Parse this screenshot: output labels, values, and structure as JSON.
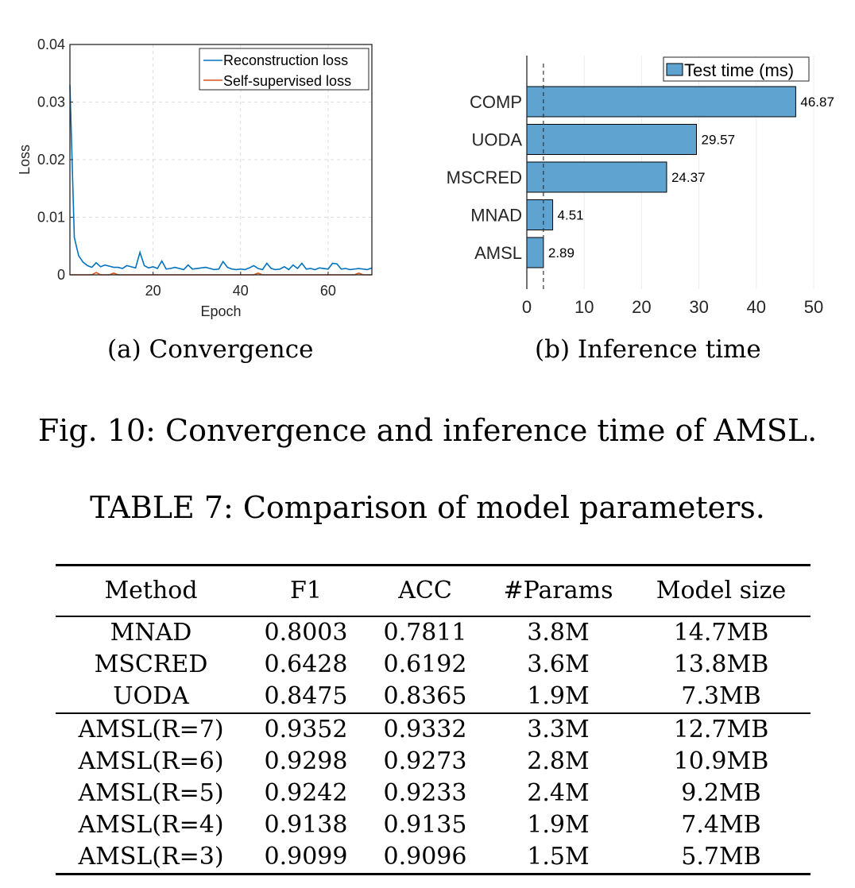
{
  "chart_data": [
    {
      "type": "line",
      "xlabel": "Epoch",
      "ylabel": "Loss",
      "xlim": [
        1,
        70
      ],
      "ylim": [
        0,
        0.04
      ],
      "xticks": [
        20,
        40,
        60
      ],
      "yticks": [
        0,
        0.01,
        0.02,
        0.03,
        0.04
      ],
      "ytick_labels": [
        "0",
        "0.01",
        "0.02",
        "0.03",
        "0.04"
      ],
      "grid": true,
      "legend": "top-right",
      "x": [
        1,
        2,
        3,
        4,
        5,
        6,
        7,
        8,
        9,
        10,
        11,
        12,
        13,
        14,
        15,
        16,
        17,
        18,
        19,
        20,
        21,
        22,
        23,
        24,
        25,
        26,
        27,
        28,
        29,
        30,
        31,
        32,
        33,
        34,
        35,
        36,
        37,
        38,
        39,
        40,
        41,
        42,
        43,
        44,
        45,
        46,
        47,
        48,
        49,
        50,
        51,
        52,
        53,
        54,
        55,
        56,
        57,
        58,
        59,
        60,
        61,
        62,
        63,
        64,
        65,
        66,
        67,
        68,
        69,
        70
      ],
      "series": [
        {
          "name": "Reconstruction loss",
          "color": "#0072BD",
          "values": [
            0.033,
            0.0065,
            0.0033,
            0.0022,
            0.0016,
            0.0013,
            0.0021,
            0.0014,
            0.0017,
            0.0015,
            0.0013,
            0.0013,
            0.0011,
            0.0016,
            0.0014,
            0.0012,
            0.0039,
            0.0016,
            0.0012,
            0.0014,
            0.0011,
            0.0024,
            0.001,
            0.0011,
            0.0013,
            0.0011,
            0.0009,
            0.0017,
            0.001,
            0.0011,
            0.0012,
            0.0013,
            0.0011,
            0.0009,
            0.001,
            0.0023,
            0.0013,
            0.001,
            0.0009,
            0.001,
            0.0009,
            0.0012,
            0.0016,
            0.0011,
            0.0009,
            0.002,
            0.0011,
            0.0009,
            0.001,
            0.0014,
            0.0009,
            0.0017,
            0.0011,
            0.002,
            0.001,
            0.0011,
            0.0009,
            0.0012,
            0.0011,
            0.001,
            0.002,
            0.0019,
            0.001,
            0.0011,
            0.0009,
            0.001,
            0.0011,
            0.001,
            0.0009,
            0.0012
          ]
        },
        {
          "name": "Self-supervised loss",
          "color": "#D95319",
          "values": [
            0.0,
            0.0,
            0.0,
            0.0,
            0.0,
            0.0,
            0.0004,
            0.0,
            0.0,
            0.0,
            0.0003,
            0.0,
            0.0,
            0.0,
            0.0,
            0.0,
            0.0,
            0.0,
            0.0,
            0.0,
            0.0,
            0.0,
            0.0,
            0.0,
            0.0,
            0.0,
            0.0,
            0.0,
            0.0,
            0.0,
            0.0,
            0.0,
            0.0,
            0.0,
            0.0,
            0.0,
            0.0,
            0.0,
            0.0,
            0.0,
            0.0,
            0.0,
            0.0,
            0.0003,
            0.0,
            0.0,
            0.0,
            0.0,
            0.0,
            0.0,
            0.0,
            0.0,
            0.0,
            0.0,
            0.0,
            0.0,
            0.0,
            0.0,
            0.0,
            0.0,
            0.0,
            0.0,
            0.0,
            0.0,
            0.0,
            0.0,
            0.0003,
            0.0,
            0.0,
            0.0
          ]
        }
      ]
    },
    {
      "type": "bar",
      "orientation": "horizontal",
      "categories": [
        "COMP",
        "UODA",
        "MSCRED",
        "MNAD",
        "AMSL"
      ],
      "series": [
        {
          "name": "Test time (ms)",
          "color": "#5FA3D0",
          "values": [
            46.87,
            29.57,
            24.37,
            4.51,
            2.89
          ]
        }
      ],
      "value_labels": [
        "46.87",
        "29.57",
        "24.37",
        "4.51",
        "2.89"
      ],
      "xlim": [
        0,
        50
      ],
      "xticks": [
        0,
        10,
        20,
        30,
        40,
        50
      ],
      "reference_line_x": 2.89,
      "grid": true,
      "legend": "top-right"
    }
  ],
  "captions": {
    "sub_a": "(a) Convergence",
    "sub_b": "(b) Inference time",
    "figure": "Fig. 10: Convergence and inference time of AMSL.",
    "table": "TABLE 7: Comparison of model parameters."
  },
  "table": {
    "headers": [
      "Method",
      "F1",
      "ACC",
      "#Params",
      "Model size"
    ],
    "group_a": [
      [
        "MNAD",
        "0.8003",
        "0.7811",
        "3.8M",
        "14.7MB"
      ],
      [
        "MSCRED",
        "0.6428",
        "0.6192",
        "3.6M",
        "13.8MB"
      ],
      [
        "UODA",
        "0.8475",
        "0.8365",
        "1.9M",
        "7.3MB"
      ]
    ],
    "group_b": [
      [
        "AMSL(R=7)",
        "0.9352",
        "0.9332",
        "3.3M",
        "12.7MB"
      ],
      [
        "AMSL(R=6)",
        "0.9298",
        "0.9273",
        "2.8M",
        "10.9MB"
      ],
      [
        "AMSL(R=5)",
        "0.9242",
        "0.9233",
        "2.4M",
        "9.2MB"
      ],
      [
        "AMSL(R=4)",
        "0.9138",
        "0.9135",
        "1.9M",
        "7.4MB"
      ],
      [
        "AMSL(R=3)",
        "0.9099",
        "0.9096",
        "1.5M",
        "5.7MB"
      ]
    ]
  }
}
